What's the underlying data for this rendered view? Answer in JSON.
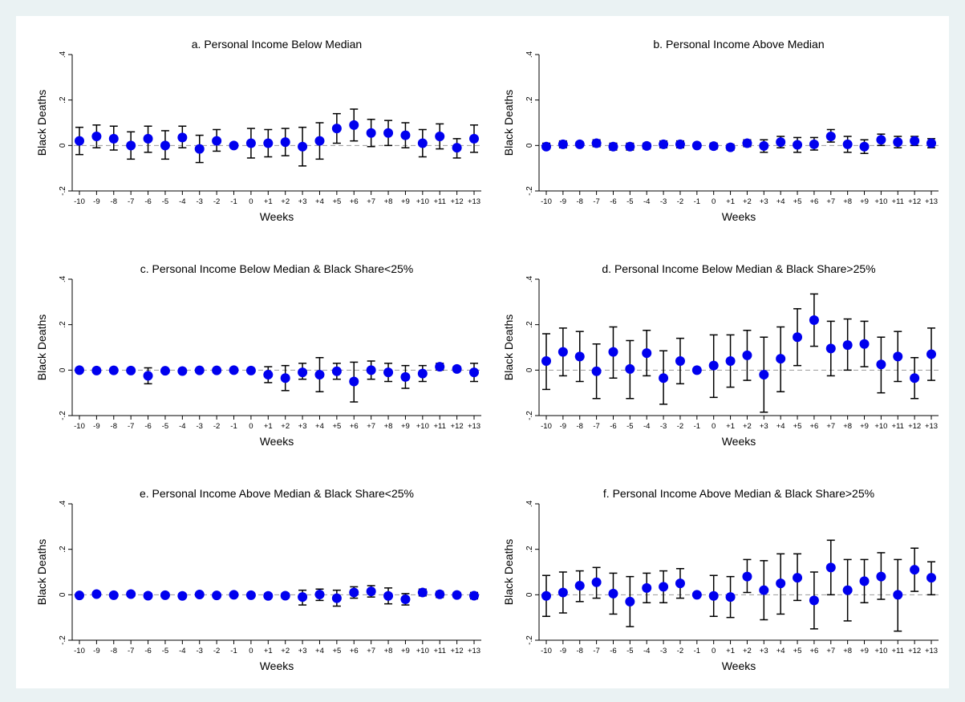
{
  "figure": {
    "background": "#eaf2f3",
    "plot_background": "#ffffff",
    "marker_color": "#0000ee",
    "ci_color": "#000000",
    "zero_line_color": "#999999"
  },
  "chart_data": [
    {
      "type": "scatter",
      "title": "a. Personal Income Below Median",
      "xlabel": "Weeks",
      "ylabel": "Black Deaths",
      "x": [
        "-10",
        "-9",
        "-8",
        "-7",
        "-6",
        "-5",
        "-4",
        "-3",
        "-2",
        "-1",
        "0",
        "+1",
        "+2",
        "+3",
        "+4",
        "+5",
        "+6",
        "+7",
        "+8",
        "+9",
        "+10",
        "+11",
        "+12",
        "+13"
      ],
      "yticks": [
        ".4",
        ".2",
        "0",
        "-.2"
      ],
      "ytick_values": [
        0.4,
        0.2,
        0,
        -0.2
      ],
      "ylim": [
        -0.2,
        0.4
      ],
      "series": [
        {
          "values": [
            0.02,
            0.04,
            0.03,
            0.0,
            0.03,
            0.0,
            0.035,
            -0.015,
            0.02,
            0.0,
            0.01,
            0.01,
            0.015,
            -0.005,
            0.02,
            0.075,
            0.09,
            0.055,
            0.055,
            0.045,
            0.01,
            0.04,
            -0.01,
            0.03
          ],
          "ci_low": [
            -0.04,
            -0.01,
            -0.02,
            -0.06,
            -0.03,
            -0.06,
            -0.01,
            -0.075,
            -0.025,
            0.0,
            -0.055,
            -0.05,
            -0.045,
            -0.09,
            -0.06,
            0.01,
            0.02,
            -0.005,
            0.0,
            -0.01,
            -0.05,
            -0.015,
            -0.055,
            -0.03
          ],
          "ci_high": [
            0.08,
            0.09,
            0.085,
            0.06,
            0.085,
            0.065,
            0.085,
            0.045,
            0.07,
            0.0,
            0.075,
            0.07,
            0.075,
            0.08,
            0.1,
            0.14,
            0.16,
            0.115,
            0.11,
            0.1,
            0.07,
            0.095,
            0.03,
            0.09
          ]
        }
      ]
    },
    {
      "type": "scatter",
      "title": "b. Personal Income Above Median",
      "xlabel": "Weeks",
      "ylabel": "Black Deaths",
      "x": [
        "-10",
        "-9",
        "-8",
        "-7",
        "-6",
        "-5",
        "-4",
        "-3",
        "-2",
        "-1",
        "0",
        "+1",
        "+2",
        "+3",
        "+4",
        "+5",
        "+6",
        "+7",
        "+8",
        "+9",
        "+10",
        "+11",
        "+12",
        "+13"
      ],
      "yticks": [
        ".4",
        ".2",
        "0",
        "-.2"
      ],
      "ytick_values": [
        0.4,
        0.2,
        0,
        -0.2
      ],
      "ylim": [
        -0.2,
        0.4
      ],
      "series": [
        {
          "values": [
            -0.005,
            0.005,
            0.005,
            0.01,
            -0.005,
            -0.005,
            -0.002,
            0.005,
            0.005,
            0.0,
            -0.003,
            -0.008,
            0.01,
            -0.002,
            0.015,
            0.003,
            0.005,
            0.04,
            0.005,
            -0.005,
            0.025,
            0.015,
            0.02,
            0.01
          ],
          "ci_low": [
            -0.015,
            -0.01,
            -0.005,
            -0.005,
            -0.02,
            -0.02,
            -0.015,
            -0.01,
            -0.01,
            0.0,
            -0.015,
            -0.02,
            -0.005,
            -0.03,
            -0.01,
            -0.03,
            -0.02,
            0.015,
            -0.03,
            -0.035,
            0.0,
            -0.01,
            0.0,
            -0.01
          ],
          "ci_high": [
            0.01,
            0.02,
            0.015,
            0.025,
            0.01,
            0.01,
            0.01,
            0.02,
            0.02,
            0.0,
            0.01,
            0.005,
            0.025,
            0.025,
            0.04,
            0.035,
            0.035,
            0.07,
            0.04,
            0.025,
            0.05,
            0.04,
            0.04,
            0.03
          ]
        }
      ]
    },
    {
      "type": "scatter",
      "title": "c. Personal Income Below Median & Black Share<25%",
      "xlabel": "Weeks",
      "ylabel": "Black Deaths",
      "x": [
        "-10",
        "-9",
        "-8",
        "-7",
        "-6",
        "-5",
        "-4",
        "-3",
        "-2",
        "-1",
        "0",
        "+1",
        "+2",
        "+3",
        "+4",
        "+5",
        "+6",
        "+7",
        "+8",
        "+9",
        "+10",
        "+11",
        "+12",
        "+13"
      ],
      "yticks": [
        ".4",
        ".2",
        "0",
        "-.2"
      ],
      "ytick_values": [
        0.4,
        0.2,
        0,
        -0.2
      ],
      "ylim": [
        -0.2,
        0.4
      ],
      "series": [
        {
          "values": [
            0.0,
            -0.002,
            -0.001,
            -0.002,
            -0.025,
            -0.003,
            -0.004,
            -0.001,
            -0.001,
            0.0,
            -0.002,
            -0.02,
            -0.035,
            -0.01,
            -0.02,
            -0.005,
            -0.05,
            0.0,
            -0.01,
            -0.03,
            -0.015,
            0.015,
            0.005,
            -0.01
          ],
          "ci_low": [
            -0.005,
            -0.007,
            -0.006,
            -0.008,
            -0.06,
            -0.008,
            -0.01,
            -0.006,
            -0.006,
            0.0,
            -0.008,
            -0.055,
            -0.09,
            -0.04,
            -0.095,
            -0.04,
            -0.14,
            -0.04,
            -0.05,
            -0.08,
            -0.05,
            0.0,
            -0.005,
            -0.05
          ],
          "ci_high": [
            0.005,
            0.003,
            0.004,
            0.004,
            0.01,
            0.002,
            0.002,
            0.004,
            0.004,
            0.0,
            0.004,
            0.015,
            0.02,
            0.03,
            0.055,
            0.03,
            0.035,
            0.04,
            0.03,
            0.02,
            0.02,
            0.03,
            0.015,
            0.03
          ]
        }
      ]
    },
    {
      "type": "scatter",
      "title": "d. Personal Income Below Median & Black Share>25%",
      "xlabel": "Weeks",
      "ylabel": "Black Deaths",
      "x": [
        "-10",
        "-9",
        "-8",
        "-7",
        "-6",
        "-5",
        "-4",
        "-3",
        "-2",
        "-1",
        "0",
        "+1",
        "+2",
        "+3",
        "+4",
        "+5",
        "+6",
        "+7",
        "+8",
        "+9",
        "+10",
        "+11",
        "+12",
        "+13"
      ],
      "yticks": [
        ".4",
        ".2",
        "0",
        "-.2"
      ],
      "ytick_values": [
        0.4,
        0.2,
        0,
        -0.2
      ],
      "ylim": [
        -0.2,
        0.4
      ],
      "series": [
        {
          "values": [
            0.04,
            0.08,
            0.06,
            -0.005,
            0.08,
            0.005,
            0.075,
            -0.035,
            0.04,
            0.0,
            0.02,
            0.04,
            0.065,
            -0.02,
            0.05,
            0.145,
            0.22,
            0.095,
            0.11,
            0.115,
            0.025,
            0.06,
            -0.035,
            0.07
          ],
          "ci_low": [
            -0.085,
            -0.025,
            -0.05,
            -0.125,
            -0.035,
            -0.125,
            -0.025,
            -0.15,
            -0.06,
            0.0,
            -0.12,
            -0.075,
            -0.045,
            -0.185,
            -0.095,
            0.02,
            0.105,
            -0.025,
            0.0,
            0.015,
            -0.1,
            -0.05,
            -0.125,
            -0.045
          ],
          "ci_high": [
            0.16,
            0.185,
            0.17,
            0.115,
            0.19,
            0.13,
            0.175,
            0.085,
            0.14,
            0.0,
            0.155,
            0.155,
            0.175,
            0.145,
            0.19,
            0.27,
            0.335,
            0.215,
            0.225,
            0.215,
            0.145,
            0.17,
            0.055,
            0.185
          ]
        }
      ]
    },
    {
      "type": "scatter",
      "title": "e. Personal Income Above Median & Black Share<25%",
      "xlabel": "Weeks",
      "ylabel": "Black Deaths",
      "x": [
        "-10",
        "-9",
        "-8",
        "-7",
        "-6",
        "-5",
        "-4",
        "-3",
        "-2",
        "-1",
        "0",
        "+1",
        "+2",
        "+3",
        "+4",
        "+5",
        "+6",
        "+7",
        "+8",
        "+9",
        "+10",
        "+11",
        "+12",
        "+13"
      ],
      "yticks": [
        ".4",
        ".2",
        "0",
        "-.2"
      ],
      "ytick_values": [
        0.4,
        0.2,
        0,
        -0.2
      ],
      "ylim": [
        -0.2,
        0.4
      ],
      "series": [
        {
          "values": [
            -0.003,
            0.003,
            -0.002,
            0.003,
            -0.004,
            -0.002,
            -0.005,
            0.001,
            -0.003,
            0.0,
            -0.002,
            -0.005,
            -0.004,
            -0.01,
            0.001,
            -0.015,
            0.01,
            0.015,
            -0.005,
            -0.02,
            0.01,
            0.002,
            -0.001,
            -0.004
          ],
          "ci_low": [
            -0.012,
            -0.006,
            -0.01,
            -0.006,
            -0.012,
            -0.01,
            -0.014,
            -0.008,
            -0.012,
            0.0,
            -0.01,
            -0.014,
            -0.014,
            -0.045,
            -0.025,
            -0.05,
            -0.015,
            -0.01,
            -0.04,
            -0.045,
            -0.005,
            -0.012,
            -0.012,
            -0.018
          ],
          "ci_high": [
            0.006,
            0.012,
            0.006,
            0.012,
            0.004,
            0.006,
            0.004,
            0.01,
            0.006,
            0.0,
            0.006,
            0.004,
            0.006,
            0.02,
            0.025,
            0.02,
            0.035,
            0.04,
            0.03,
            0.005,
            0.025,
            0.015,
            0.01,
            0.01
          ]
        }
      ]
    },
    {
      "type": "scatter",
      "title": "f. Personal Income Above Median & Black Share>25%",
      "xlabel": "Weeks",
      "ylabel": "Black Deaths",
      "x": [
        "-10",
        "-9",
        "-8",
        "-7",
        "-6",
        "-5",
        "-4",
        "-3",
        "-2",
        "-1",
        "0",
        "+1",
        "+2",
        "+3",
        "+4",
        "+5",
        "+6",
        "+7",
        "+8",
        "+9",
        "+10",
        "+11",
        "+12",
        "+13"
      ],
      "yticks": [
        ".4",
        ".2",
        "0",
        "-.2"
      ],
      "ytick_values": [
        0.4,
        0.2,
        0,
        -0.2
      ],
      "ylim": [
        -0.2,
        0.4
      ],
      "series": [
        {
          "values": [
            -0.005,
            0.01,
            0.04,
            0.055,
            0.005,
            -0.03,
            0.03,
            0.035,
            0.05,
            0.0,
            -0.005,
            -0.01,
            0.08,
            0.02,
            0.05,
            0.075,
            -0.025,
            0.12,
            0.02,
            0.06,
            0.08,
            0.0,
            0.11,
            0.075
          ],
          "ci_low": [
            -0.095,
            -0.08,
            -0.03,
            -0.015,
            -0.085,
            -0.14,
            -0.035,
            -0.035,
            -0.015,
            0.0,
            -0.095,
            -0.1,
            0.01,
            -0.11,
            -0.085,
            -0.025,
            -0.15,
            0.0,
            -0.115,
            -0.035,
            -0.02,
            -0.16,
            0.015,
            0.0
          ],
          "ci_high": [
            0.085,
            0.1,
            0.105,
            0.12,
            0.095,
            0.08,
            0.095,
            0.105,
            0.115,
            0.0,
            0.085,
            0.08,
            0.155,
            0.15,
            0.18,
            0.18,
            0.1,
            0.24,
            0.155,
            0.155,
            0.185,
            0.155,
            0.205,
            0.145
          ]
        }
      ]
    }
  ]
}
